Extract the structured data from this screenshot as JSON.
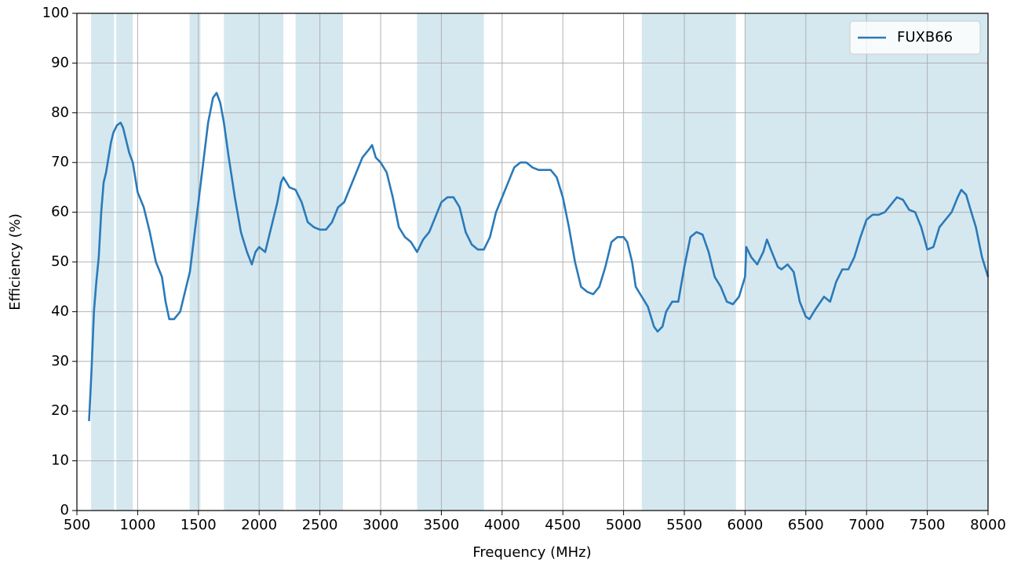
{
  "chart_data": {
    "type": "line",
    "xlabel": "Frequency (MHz)",
    "ylabel": "Efficiency (%)",
    "xlim": [
      500,
      8000
    ],
    "ylim": [
      0,
      100
    ],
    "xticks": [
      500,
      1000,
      1500,
      2000,
      2500,
      3000,
      3500,
      4000,
      4500,
      5000,
      5500,
      6000,
      6500,
      7000,
      7500,
      8000
    ],
    "yticks": [
      0,
      10,
      20,
      30,
      40,
      50,
      60,
      70,
      80,
      90,
      100
    ],
    "grid": true,
    "legend": "upper right",
    "bands": [
      [
        617,
        806
      ],
      [
        824,
        960
      ],
      [
        1427,
        1517
      ],
      [
        1710,
        2200
      ],
      [
        2300,
        2690
      ],
      [
        3300,
        3850
      ],
      [
        5150,
        5925
      ],
      [
        6000,
        8000
      ]
    ],
    "band_color": "#d5e8f0",
    "x": [
      600,
      620,
      640,
      660,
      680,
      700,
      720,
      740,
      760,
      780,
      800,
      830,
      860,
      880,
      900,
      930,
      960,
      980,
      1000,
      1050,
      1100,
      1150,
      1200,
      1230,
      1260,
      1300,
      1350,
      1400,
      1430,
      1460,
      1500,
      1540,
      1580,
      1620,
      1650,
      1680,
      1710,
      1750,
      1800,
      1850,
      1900,
      1940,
      1970,
      2000,
      2050,
      2100,
      2150,
      2180,
      2200,
      2250,
      2300,
      2350,
      2400,
      2450,
      2500,
      2550,
      2600,
      2650,
      2700,
      2750,
      2800,
      2850,
      2900,
      2930,
      2960,
      3000,
      3050,
      3100,
      3150,
      3200,
      3250,
      3300,
      3350,
      3400,
      3450,
      3500,
      3550,
      3600,
      3650,
      3700,
      3750,
      3800,
      3850,
      3900,
      3950,
      4000,
      4050,
      4100,
      4150,
      4200,
      4250,
      4300,
      4350,
      4400,
      4450,
      4500,
      4550,
      4600,
      4650,
      4700,
      4750,
      4800,
      4850,
      4900,
      4950,
      5000,
      5030,
      5070,
      5100,
      5150,
      5200,
      5250,
      5280,
      5320,
      5350,
      5400,
      5450,
      5500,
      5550,
      5600,
      5650,
      5700,
      5750,
      5800,
      5850,
      5900,
      5950,
      6000,
      6010,
      6050,
      6100,
      6150,
      6180,
      6220,
      6270,
      6300,
      6350,
      6400,
      6450,
      6500,
      6530,
      6580,
      6650,
      6700,
      6750,
      6800,
      6850,
      6900,
      6950,
      7000,
      7050,
      7100,
      7150,
      7200,
      7250,
      7300,
      7350,
      7400,
      7450,
      7500,
      7550,
      7600,
      7650,
      7700,
      7750,
      7780,
      7820,
      7850,
      7900,
      7950,
      8000
    ],
    "series": [
      {
        "name": "FUXB66",
        "color": "#2a7ab9",
        "values": [
          18,
          28,
          40,
          46,
          51,
          60,
          66,
          68,
          71,
          74,
          76,
          77.5,
          78,
          77,
          75,
          72,
          70,
          67,
          64,
          61,
          56,
          50,
          47,
          42,
          38.5,
          38.5,
          40,
          45,
          48,
          54,
          62,
          70,
          78,
          83,
          84,
          82,
          78,
          71,
          63,
          56,
          52,
          49.5,
          52,
          53,
          52,
          57,
          62,
          66,
          67,
          65,
          64.5,
          62,
          58,
          57,
          56.5,
          56.5,
          58,
          61,
          62,
          65,
          68,
          71,
          72.5,
          73.5,
          71,
          70,
          68,
          63,
          57,
          55,
          54,
          52,
          54.5,
          56,
          59,
          62,
          63,
          63,
          61,
          56,
          53.5,
          52.5,
          52.5,
          55,
          60,
          63,
          66,
          69,
          70,
          70,
          69,
          68.5,
          68.5,
          68.5,
          67,
          63,
          57,
          50,
          45,
          44,
          43.5,
          45,
          49,
          54,
          55,
          55,
          54,
          50,
          45,
          43,
          41,
          37,
          36,
          37,
          40,
          42,
          42,
          49,
          55,
          56,
          55.5,
          52,
          47,
          45,
          42,
          41.5,
          43,
          47,
          53,
          51,
          49.5,
          52,
          54.5,
          52,
          49,
          48.5,
          49.5,
          48,
          42,
          39,
          38.5,
          40.5,
          43,
          42,
          46,
          48.5,
          48.5,
          51,
          55,
          58.5,
          59.5,
          59.5,
          60,
          61.5,
          63,
          62.5,
          60.5,
          60,
          57,
          52.5,
          53,
          57,
          58.5,
          60,
          63,
          64.5,
          63.5,
          61,
          57,
          51,
          47
        ]
      }
    ]
  }
}
